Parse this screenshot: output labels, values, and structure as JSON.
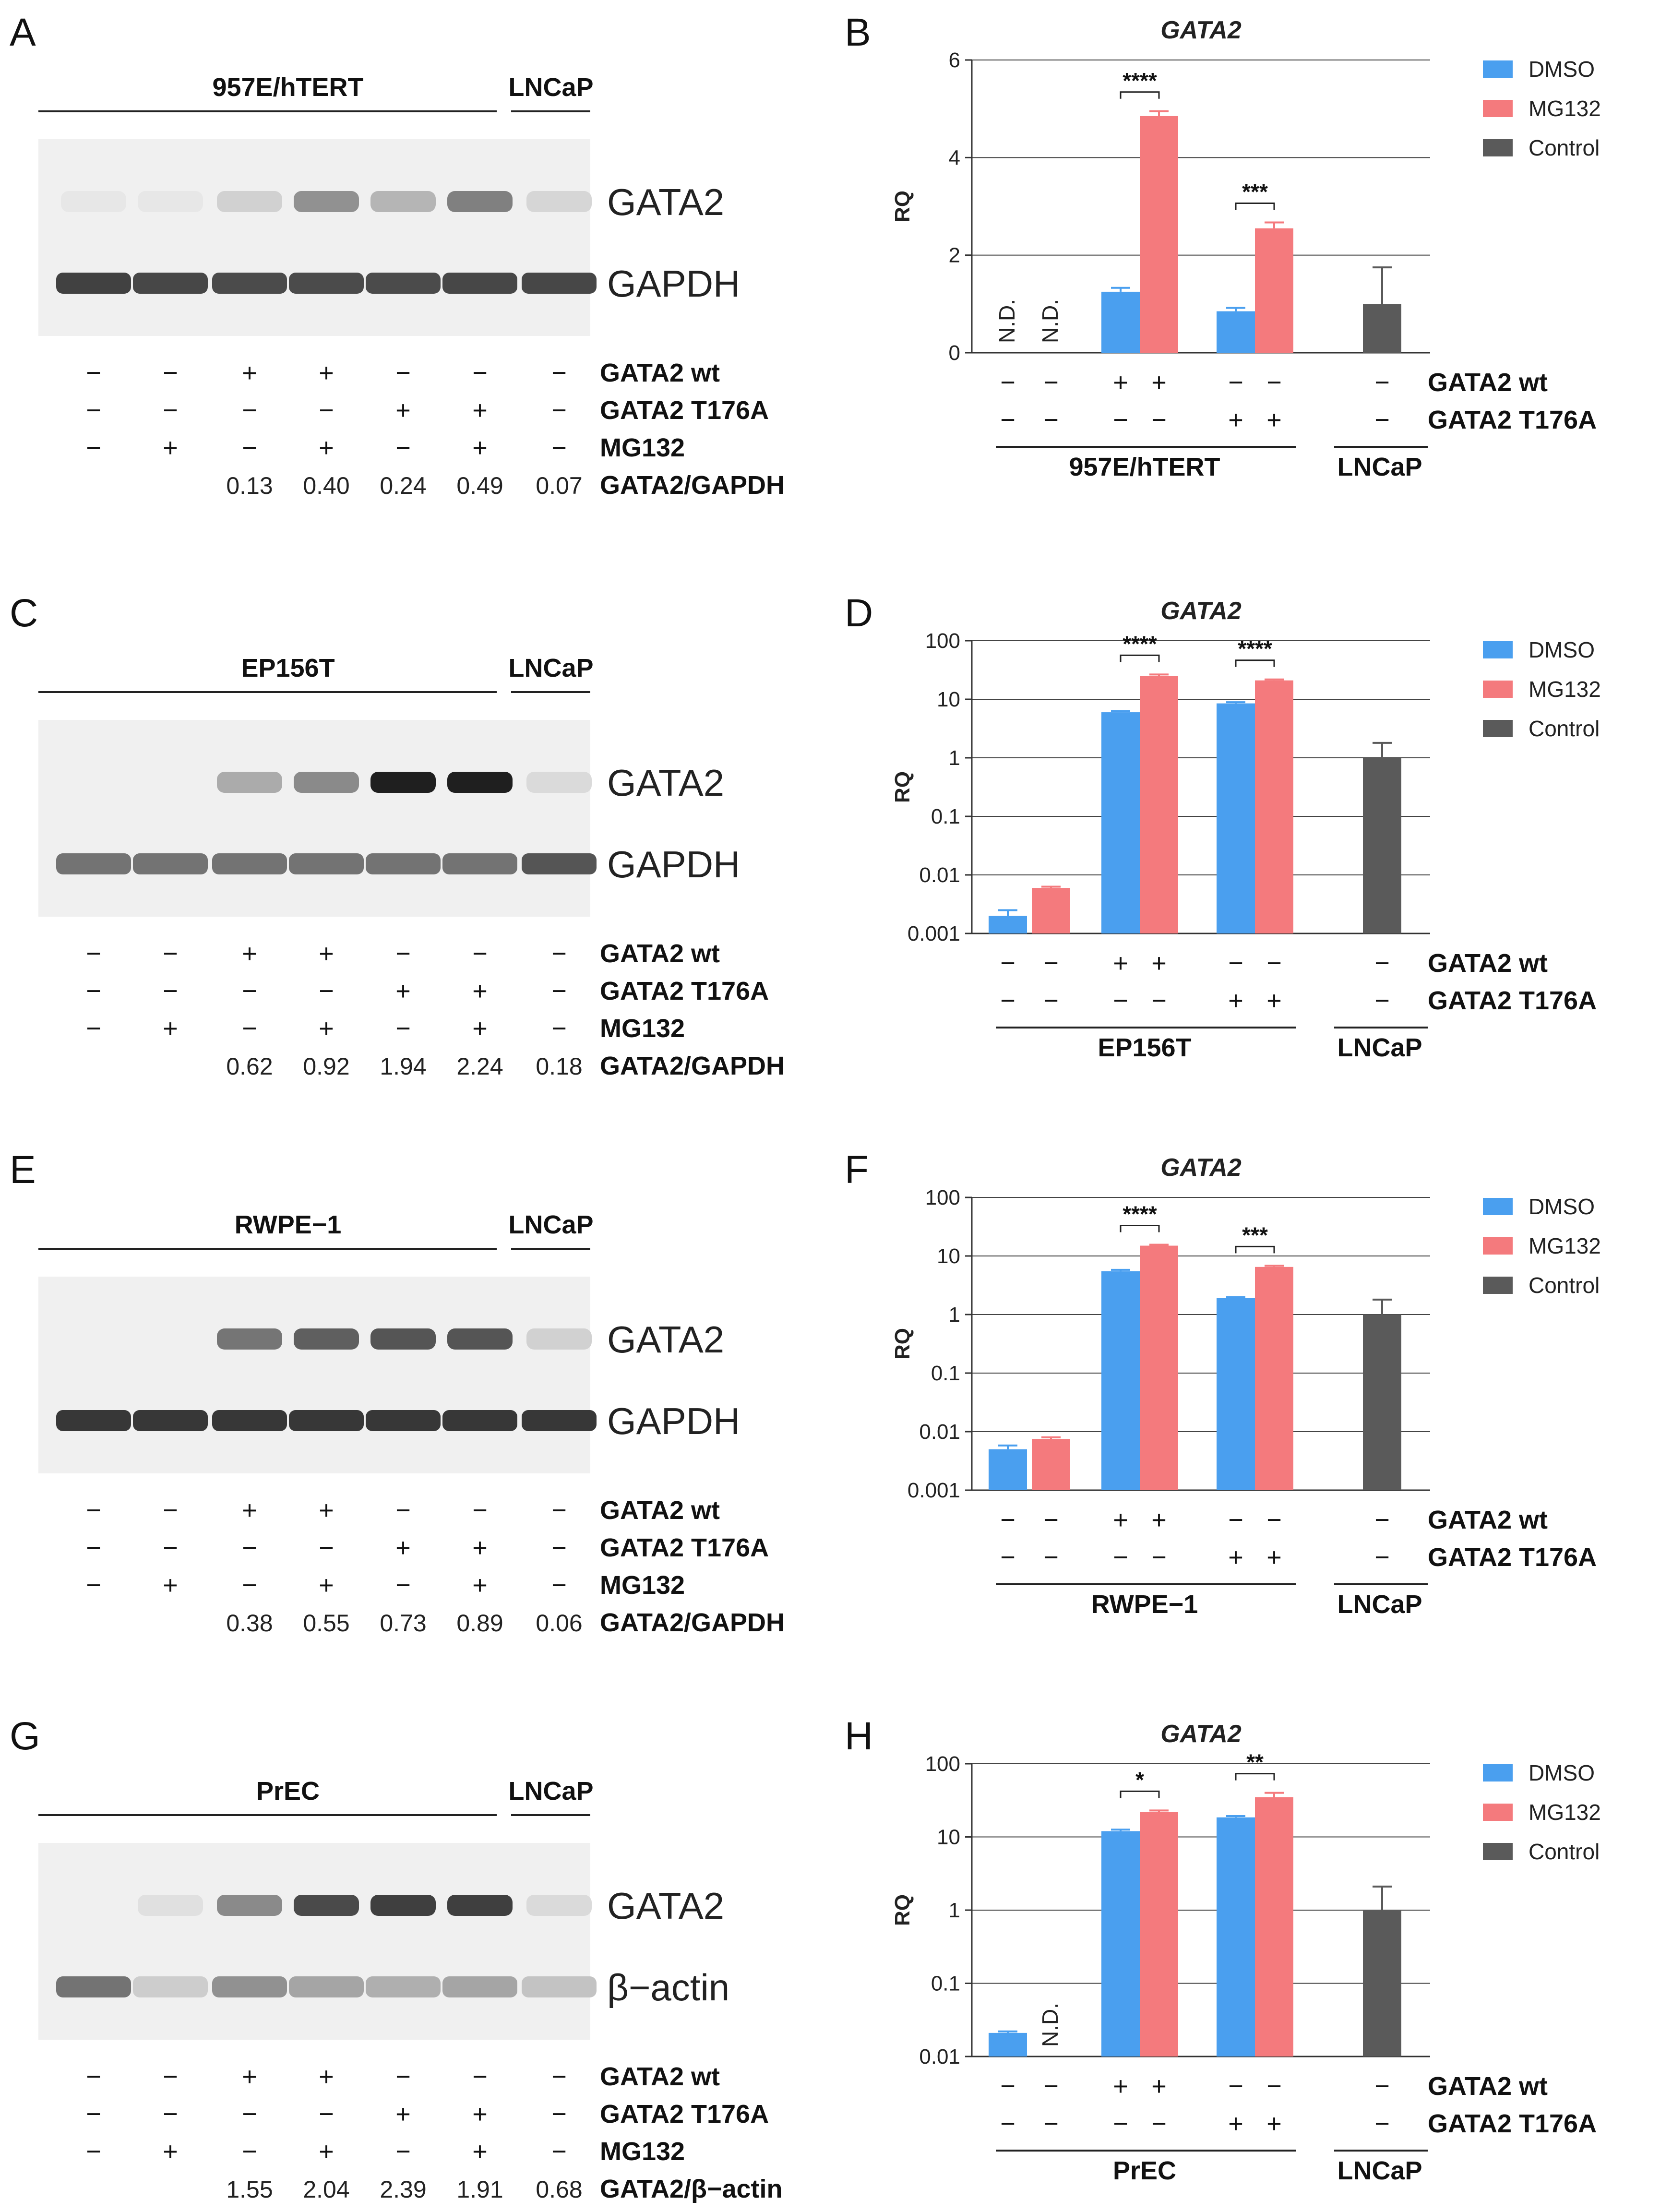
{
  "colors": {
    "dmso": "#4a9fef",
    "mg132": "#f47a7d",
    "control": "#5a5a5a",
    "axis": "#333333"
  },
  "legend": [
    "DMSO",
    "MG132",
    "Control"
  ],
  "blots": [
    {
      "panel": "A",
      "cell_line": "957E/hTERT",
      "ref_line": "LNCaP",
      "bands": [
        "GATA2",
        "GAPDH"
      ],
      "ratio_label": "GATA2/GAPDH",
      "row_labels": [
        "GATA2 wt",
        "GATA2 T176A",
        "MG132"
      ],
      "rows": [
        [
          "−",
          "−",
          "+",
          "+",
          "−",
          "−",
          "−"
        ],
        [
          "−",
          "−",
          "−",
          "−",
          "+",
          "+",
          "−"
        ],
        [
          "−",
          "+",
          "−",
          "+",
          "−",
          "+",
          "−"
        ]
      ],
      "ratios": [
        "",
        "",
        "0.13",
        "0.40",
        "0.24",
        "0.49",
        "0.07"
      ],
      "gata2_intensity": [
        0.02,
        0.02,
        0.12,
        0.42,
        0.25,
        0.5,
        0.1
      ],
      "ref_intensity": [
        0.85,
        0.82,
        0.8,
        0.8,
        0.8,
        0.82,
        0.82
      ]
    },
    {
      "panel": "C",
      "cell_line": "EP156T",
      "ref_line": "LNCaP",
      "bands": [
        "GATA2",
        "GAPDH"
      ],
      "ratio_label": "GATA2/GAPDH",
      "row_labels": [
        "GATA2 wt",
        "GATA2 T176A",
        "MG132"
      ],
      "rows": [
        [
          "−",
          "−",
          "+",
          "+",
          "−",
          "−",
          "−"
        ],
        [
          "−",
          "−",
          "−",
          "−",
          "+",
          "+",
          "−"
        ],
        [
          "−",
          "+",
          "−",
          "+",
          "−",
          "+",
          "−"
        ]
      ],
      "ratios": [
        "",
        "",
        "0.62",
        "0.92",
        "1.94",
        "2.24",
        "0.18"
      ],
      "gata2_intensity": [
        0.0,
        0.0,
        0.3,
        0.45,
        0.95,
        0.95,
        0.08
      ],
      "ref_intensity": [
        0.6,
        0.6,
        0.6,
        0.6,
        0.6,
        0.6,
        0.75
      ]
    },
    {
      "panel": "E",
      "cell_line": "RWPE−1",
      "ref_line": "LNCaP",
      "bands": [
        "GATA2",
        "GAPDH"
      ],
      "ratio_label": "GATA2/GAPDH",
      "row_labels": [
        "GATA2 wt",
        "GATA2 T176A",
        "MG132"
      ],
      "rows": [
        [
          "−",
          "−",
          "+",
          "+",
          "−",
          "−",
          "−"
        ],
        [
          "−",
          "−",
          "−",
          "−",
          "+",
          "+",
          "−"
        ],
        [
          "−",
          "+",
          "−",
          "+",
          "−",
          "+",
          "−"
        ]
      ],
      "ratios": [
        "",
        "",
        "0.38",
        "0.55",
        "0.73",
        "0.89",
        "0.06"
      ],
      "gata2_intensity": [
        0.0,
        0.0,
        0.55,
        0.65,
        0.7,
        0.7,
        0.12
      ],
      "ref_intensity": [
        0.9,
        0.9,
        0.9,
        0.9,
        0.9,
        0.9,
        0.9
      ]
    },
    {
      "panel": "G",
      "cell_line": "PrEC",
      "ref_line": "LNCaP",
      "bands": [
        "GATA2",
        "β−actin"
      ],
      "ratio_label": "GATA2/β−actin",
      "row_labels": [
        "GATA2 wt",
        "GATA2 T176A",
        "MG132"
      ],
      "rows": [
        [
          "−",
          "−",
          "+",
          "+",
          "−",
          "−",
          "−"
        ],
        [
          "−",
          "−",
          "−",
          "−",
          "+",
          "+",
          "−"
        ],
        [
          "−",
          "+",
          "−",
          "+",
          "−",
          "+",
          "−"
        ]
      ],
      "ratios": [
        "",
        "",
        "1.55",
        "2.04",
        "2.39",
        "1.91",
        "0.68"
      ],
      "gata2_intensity": [
        0.0,
        0.05,
        0.45,
        0.75,
        0.8,
        0.8,
        0.08
      ],
      "ref_intensity": [
        0.6,
        0.15,
        0.45,
        0.35,
        0.3,
        0.35,
        0.2
      ]
    }
  ],
  "chart_data": [
    {
      "panel": "B",
      "type": "bar",
      "title": "GATA2",
      "ylabel": "RQ",
      "scale": "linear",
      "ylim": [
        0,
        6
      ],
      "yticks": [
        "0",
        "2",
        "4",
        "6"
      ],
      "tick_values": [
        0,
        2,
        4,
        6
      ],
      "series": [
        {
          "name": "DMSO",
          "values": [
            null,
            null,
            1.25,
            0.85
          ]
        },
        {
          "name": "MG132",
          "values": [
            null,
            null,
            4.85,
            2.55
          ]
        },
        {
          "name": "Control",
          "values": [
            1.0
          ]
        }
      ],
      "errors": {
        "DMSO": [
          null,
          null,
          0.08,
          0.07
        ],
        "MG132": [
          null,
          null,
          0.1,
          0.12
        ],
        "Control": [
          0.75
        ]
      },
      "not_detected": [
        "N.D.",
        "N.D."
      ],
      "significance": [
        "****",
        "***"
      ],
      "row_labels": [
        "GATA2 wt",
        "GATA2 T176A"
      ],
      "rows": [
        [
          "−",
          "−",
          "+",
          "+",
          "−",
          "−",
          "−"
        ],
        [
          "−",
          "−",
          "−",
          "−",
          "+",
          "+",
          "−"
        ]
      ],
      "groups": [
        "957E/hTERT",
        "LNCaP"
      ]
    },
    {
      "panel": "D",
      "type": "bar",
      "title": "GATA2",
      "ylabel": "RQ",
      "scale": "log",
      "ylim": [
        0.001,
        100
      ],
      "yticks": [
        "0.001",
        "0.01",
        "0.1",
        "1",
        "10",
        "100"
      ],
      "tick_values": [
        0.001,
        0.01,
        0.1,
        1,
        10,
        100
      ],
      "series": [
        {
          "name": "DMSO",
          "values": [
            0.002,
            null,
            6,
            8.5
          ]
        },
        {
          "name": "MG132",
          "values": [
            null,
            0.006,
            25,
            21
          ]
        },
        {
          "name": "Control",
          "values": [
            1.0
          ]
        }
      ],
      "errors": {
        "DMSO": [
          0.0005,
          null,
          0.3,
          0.4
        ],
        "MG132": [
          null,
          0.0003,
          1.5,
          0.8
        ],
        "Control": [
          0.8
        ]
      },
      "not_detected": [],
      "significance": [
        "****",
        "****"
      ],
      "row_labels": [
        "GATA2 wt",
        "GATA2 T176A"
      ],
      "rows": [
        [
          "−",
          "−",
          "+",
          "+",
          "−",
          "−",
          "−"
        ],
        [
          "−",
          "−",
          "−",
          "−",
          "+",
          "+",
          "−"
        ]
      ],
      "groups": [
        "EP156T",
        "LNCaP"
      ]
    },
    {
      "panel": "F",
      "type": "bar",
      "title": "GATA2",
      "ylabel": "RQ",
      "scale": "log",
      "ylim": [
        0.001,
        100
      ],
      "yticks": [
        "0.001",
        "0.01",
        "0.1",
        "1",
        "10",
        "100"
      ],
      "tick_values": [
        0.001,
        0.01,
        0.1,
        1,
        10,
        100
      ],
      "series": [
        {
          "name": "DMSO",
          "values": [
            0.005,
            null,
            5.5,
            1.9
          ]
        },
        {
          "name": "MG132",
          "values": [
            null,
            0.0075,
            15,
            6.5
          ]
        },
        {
          "name": "Control",
          "values": [
            1.0
          ]
        }
      ],
      "errors": {
        "DMSO": [
          0.0008,
          null,
          0.3,
          0.08
        ],
        "MG132": [
          null,
          0.0005,
          0.6,
          0.3
        ],
        "Control": [
          0.8
        ]
      },
      "not_detected": [],
      "significance": [
        "****",
        "***"
      ],
      "row_labels": [
        "GATA2 wt",
        "GATA2 T176A"
      ],
      "rows": [
        [
          "−",
          "−",
          "+",
          "+",
          "−",
          "−",
          "−"
        ],
        [
          "−",
          "−",
          "−",
          "−",
          "+",
          "+",
          "−"
        ]
      ],
      "groups": [
        "RWPE−1",
        "LNCaP"
      ]
    },
    {
      "panel": "H",
      "type": "bar",
      "title": "GATA2",
      "ylabel": "RQ",
      "scale": "log",
      "ylim": [
        0.01,
        100
      ],
      "yticks": [
        "0.01",
        "0.1",
        "1",
        "10",
        "100"
      ],
      "tick_values": [
        0.01,
        0.1,
        1,
        10,
        100
      ],
      "series": [
        {
          "name": "DMSO",
          "values": [
            0.021,
            null,
            12,
            18.5
          ]
        },
        {
          "name": "MG132",
          "values": [
            null,
            null,
            22,
            35
          ]
        },
        {
          "name": "Control",
          "values": [
            1.0
          ]
        }
      ],
      "errors": {
        "DMSO": [
          0.001,
          null,
          0.6,
          0.8
        ],
        "MG132": [
          null,
          null,
          1.0,
          5.0
        ],
        "Control": [
          1.1
        ]
      },
      "not_detected": [
        "N.D."
      ],
      "significance": [
        "*",
        "**"
      ],
      "row_labels": [
        "GATA2 wt",
        "GATA2 T176A"
      ],
      "rows": [
        [
          "−",
          "−",
          "+",
          "+",
          "−",
          "−",
          "−"
        ],
        [
          "−",
          "−",
          "−",
          "−",
          "+",
          "+",
          "−"
        ]
      ],
      "groups": [
        "PrEC",
        "LNCaP"
      ]
    }
  ]
}
